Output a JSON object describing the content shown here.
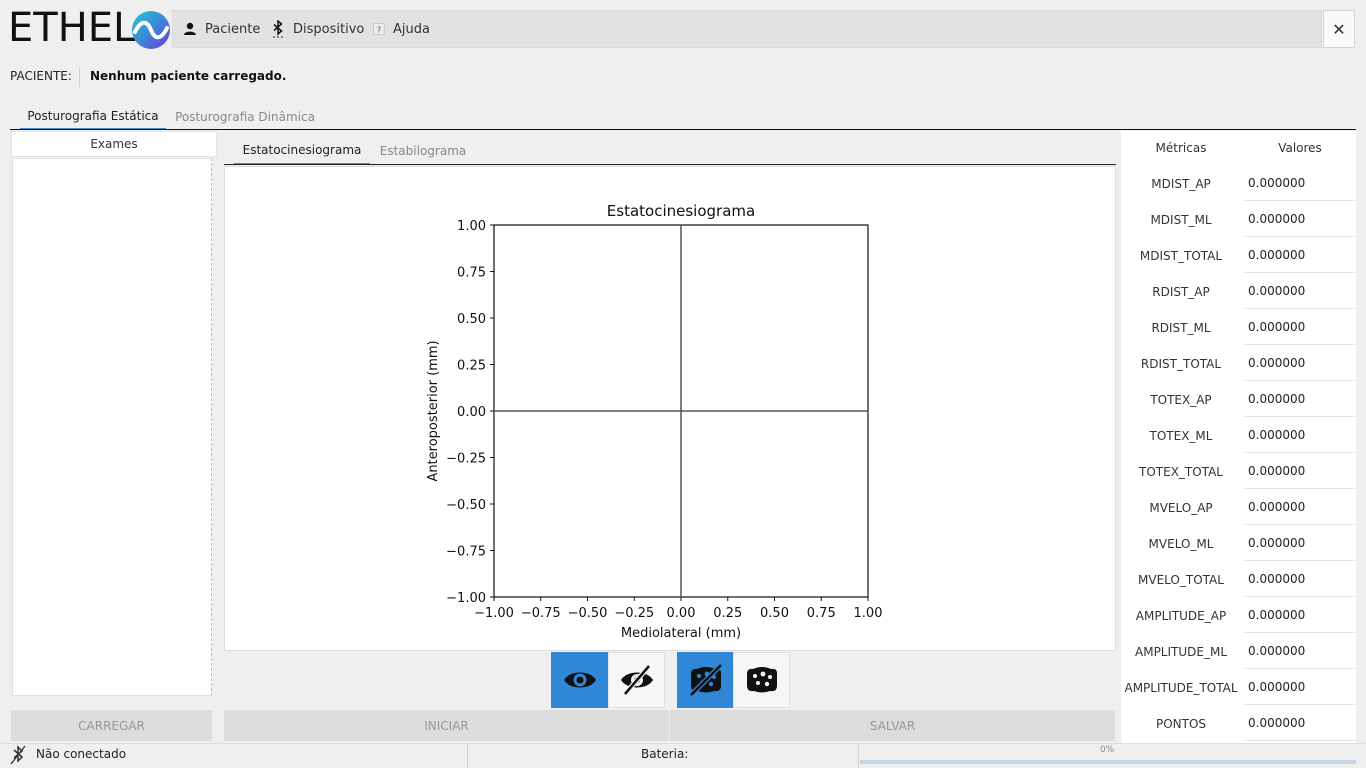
{
  "app": {
    "logo_text": "ETHEL",
    "close_glyph": "✕",
    "accent_color": "#2f87d6"
  },
  "menu": {
    "items": [
      {
        "label": "Paciente",
        "icon": "user-icon"
      },
      {
        "label": "Dispositivo",
        "icon": "bluetooth-icon"
      },
      {
        "label": "Ajuda",
        "icon": "help-icon"
      }
    ]
  },
  "patient": {
    "label": "PACIENTE:",
    "value": "Nenhum paciente carregado."
  },
  "main_tabs": [
    {
      "label": "Posturografia Estática",
      "active": true
    },
    {
      "label": "Posturografia Dinâmica",
      "active": false
    }
  ],
  "exams": {
    "header": "Exames",
    "load_button": "CARREGAR"
  },
  "sub_tabs": [
    {
      "label": "Estatocinesiograma",
      "active": true
    },
    {
      "label": "Estabilograma",
      "active": false
    }
  ],
  "toggles": [
    {
      "icon": "eye-icon",
      "state": "on"
    },
    {
      "icon": "eye-slash-icon",
      "state": "off"
    },
    {
      "icon": "sponge-slash-icon",
      "state": "on"
    },
    {
      "icon": "sponge-icon",
      "state": "off"
    }
  ],
  "actions": {
    "start_button": "INICIAR",
    "save_button": "SALVAR"
  },
  "metrics": {
    "header_name": "Métricas",
    "header_value": "Valores",
    "rows": [
      {
        "name": "MDIST_AP",
        "value": "0.000000"
      },
      {
        "name": "MDIST_ML",
        "value": "0.000000"
      },
      {
        "name": "MDIST_TOTAL",
        "value": "0.000000"
      },
      {
        "name": "RDIST_AP",
        "value": "0.000000"
      },
      {
        "name": "RDIST_ML",
        "value": "0.000000"
      },
      {
        "name": "RDIST_TOTAL",
        "value": "0.000000"
      },
      {
        "name": "TOTEX_AP",
        "value": "0.000000"
      },
      {
        "name": "TOTEX_ML",
        "value": "0.000000"
      },
      {
        "name": "TOTEX_TOTAL",
        "value": "0.000000"
      },
      {
        "name": "MVELO_AP",
        "value": "0.000000"
      },
      {
        "name": "MVELO_ML",
        "value": "0.000000"
      },
      {
        "name": "MVELO_TOTAL",
        "value": "0.000000"
      },
      {
        "name": "AMPLITUDE_AP",
        "value": "0.000000"
      },
      {
        "name": "AMPLITUDE_ML",
        "value": "0.000000"
      },
      {
        "name": "AMPLITUDE_TOTAL",
        "value": "0.000000"
      },
      {
        "name": "PONTOS",
        "value": "0.000000"
      }
    ]
  },
  "status": {
    "connection": "Não conectado",
    "battery_label": "Bateria:",
    "battery_text": "0%",
    "battery_fraction": 0
  },
  "chart_data": {
    "type": "line",
    "title": "Estatocinesiograma",
    "xlabel": "Mediolateral (mm)",
    "ylabel": "Anteroposterior (mm)",
    "xlim": [
      -1.0,
      1.0
    ],
    "ylim": [
      -1.0,
      1.0
    ],
    "xticks": [
      "−1.00",
      "−0.75",
      "−0.50",
      "−0.25",
      "0.00",
      "0.25",
      "0.50",
      "0.75",
      "1.00"
    ],
    "yticks": [
      "1.00",
      "0.75",
      "0.50",
      "0.25",
      "0.00",
      "−0.25",
      "−0.50",
      "−0.75",
      "−1.00"
    ],
    "reference_lines": {
      "x": 0,
      "y": 0
    },
    "series": [],
    "grid": false
  }
}
